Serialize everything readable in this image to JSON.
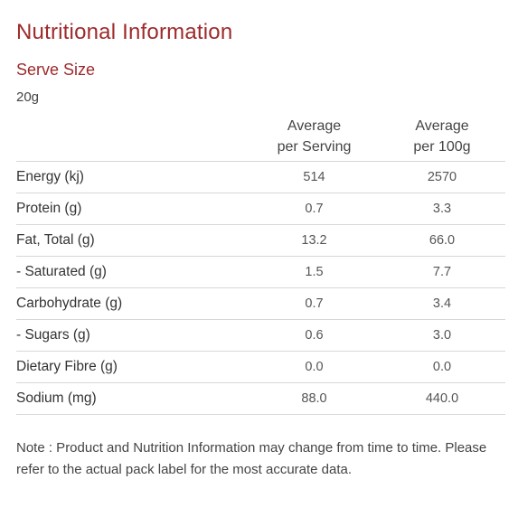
{
  "title": "Nutritional Information",
  "serve": {
    "heading": "Serve Size",
    "value": "20g"
  },
  "table": {
    "headers": {
      "per_serving_line1": "Average",
      "per_serving_line2": "per Serving",
      "per_100g_line1": "Average",
      "per_100g_line2": "per 100g"
    },
    "rows": [
      {
        "label": "Energy (kj)",
        "per_serving": "514",
        "per_100g": "2570"
      },
      {
        "label": "Protein (g)",
        "per_serving": "0.7",
        "per_100g": "3.3"
      },
      {
        "label": "Fat, Total (g)",
        "per_serving": "13.2",
        "per_100g": "66.0"
      },
      {
        "label": "- Saturated (g)",
        "per_serving": "1.5",
        "per_100g": "7.7"
      },
      {
        "label": "Carbohydrate (g)",
        "per_serving": "0.7",
        "per_100g": "3.4"
      },
      {
        "label": "- Sugars (g)",
        "per_serving": "0.6",
        "per_100g": "3.0"
      },
      {
        "label": "Dietary Fibre (g)",
        "per_serving": "0.0",
        "per_100g": "0.0"
      },
      {
        "label": "Sodium (mg)",
        "per_serving": "88.0",
        "per_100g": "440.0"
      }
    ]
  },
  "note": "Note : Product and Nutrition Information may change from time to time. Please refer to the actual pack label for the most accurate data.",
  "colors": {
    "heading": "#9e2a2b",
    "text": "#333333",
    "divider": "#d7d7d7"
  }
}
